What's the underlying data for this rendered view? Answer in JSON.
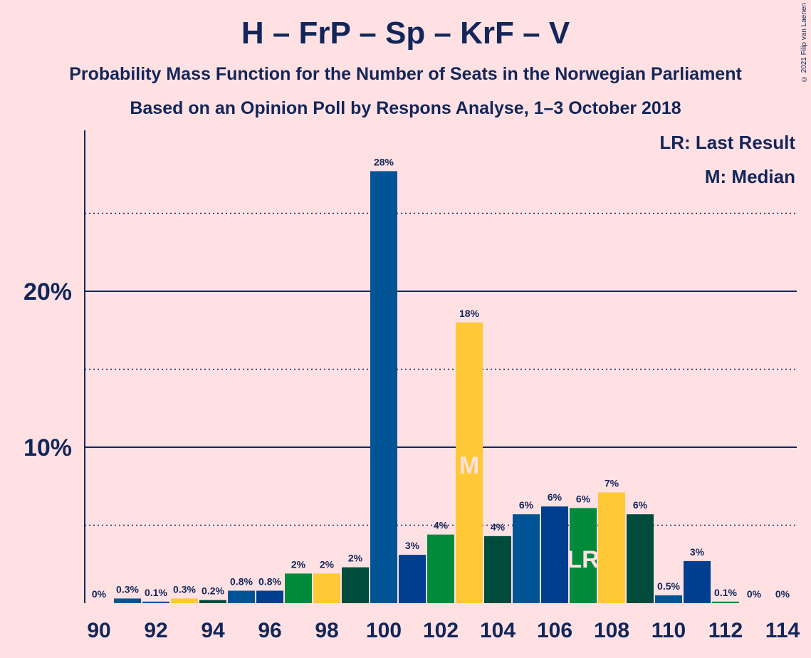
{
  "chart_data": {
    "type": "bar",
    "title": "H – FrP – Sp – KrF – V",
    "subtitle": "Probability Mass Function for the Number of Seats in the Norwegian Parliament",
    "subtitle2": "Based on an Opinion Poll by Respons Analyse, 1–3 October 2018",
    "copyright": "© 2021 Filip van Laenen",
    "legend": {
      "lr": "LR: Last Result",
      "m": "M: Median"
    },
    "xlabel": "",
    "ylabel": "",
    "ylim": [
      0,
      30
    ],
    "y_ticks": [
      {
        "value": 10,
        "label": "10%",
        "style": "solid"
      },
      {
        "value": 20,
        "label": "20%",
        "style": "solid"
      }
    ],
    "y_minor_ticks": [
      5,
      15,
      25
    ],
    "x_tick_labels": [
      "90",
      "92",
      "94",
      "96",
      "98",
      "100",
      "102",
      "104",
      "106",
      "108",
      "110",
      "112",
      "114"
    ],
    "categories": [
      90,
      91,
      92,
      93,
      94,
      95,
      96,
      97,
      98,
      99,
      100,
      101,
      102,
      103,
      104,
      105,
      106,
      107,
      108,
      109,
      110,
      111,
      112,
      113,
      114
    ],
    "values": [
      0,
      0.3,
      0.1,
      0.3,
      0.2,
      0.8,
      0.8,
      1.9,
      1.9,
      2.3,
      27.7,
      3.1,
      4.4,
      18.0,
      4.3,
      5.7,
      6.2,
      6.1,
      7.1,
      5.7,
      0.5,
      2.7,
      0.1,
      0,
      0
    ],
    "labels": [
      "0%",
      "0.3%",
      "0.1%",
      "0.3%",
      "0.2%",
      "0.8%",
      "0.8%",
      "2%",
      "2%",
      "2%",
      "28%",
      "3%",
      "4%",
      "18%",
      "4%",
      "6%",
      "6%",
      "6%",
      "7%",
      "6%",
      "0.5%",
      "3%",
      "0.1%",
      "0%",
      "0%"
    ],
    "colors": [
      "#005495",
      "#005495",
      "#005495",
      "#ffc836",
      "#004b3b",
      "#005495",
      "#003f8f",
      "#008b3a",
      "#ffc836",
      "#004b3b",
      "#005495",
      "#003f8f",
      "#008b3a",
      "#ffc836",
      "#004b3b",
      "#005495",
      "#003f8f",
      "#008b3a",
      "#ffc836",
      "#004b3b",
      "#005495",
      "#003f8f",
      "#008b3a",
      "#ffc836",
      "#004b3b"
    ],
    "median": {
      "seat": 103,
      "marker": "M"
    },
    "last_result": {
      "seat": 107,
      "marker": "LR"
    },
    "grid": true,
    "background": "#ffe1e3",
    "text_color": "#13265a"
  }
}
